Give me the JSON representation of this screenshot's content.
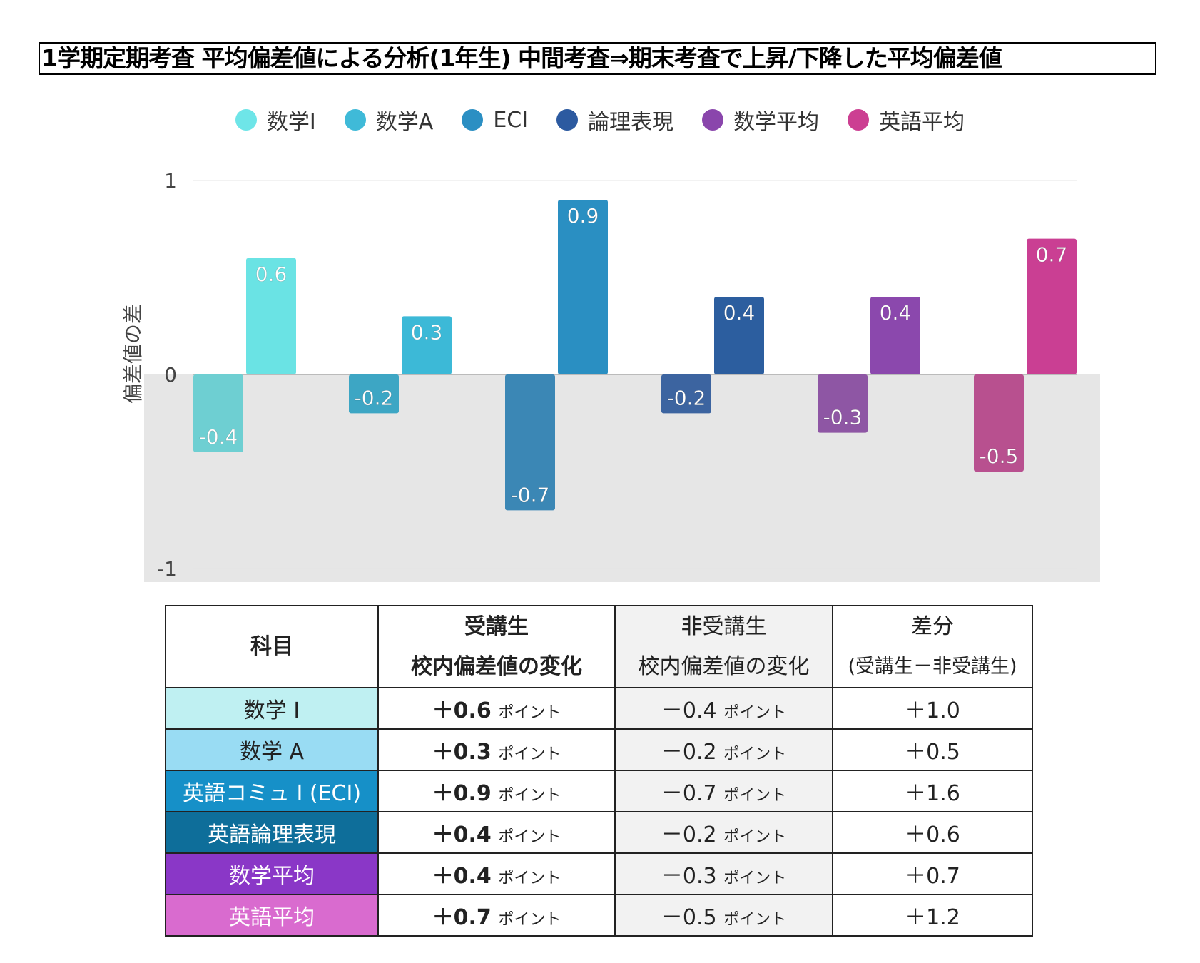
{
  "title": "1学期定期考査  平均偏差値による分析(1年生)   中間考査⇒期末考査で上昇/下降した平均偏差値",
  "chart_data": {
    "type": "bar",
    "title": "",
    "ylabel": "偏差値の差",
    "ylim": [
      -1,
      1
    ],
    "yticks": [
      "1",
      "0",
      "-1"
    ],
    "grid": true,
    "legend_position": "top",
    "categories": [
      "数学I",
      "数学A",
      "ECI",
      "論理表現",
      "数学平均",
      "英語平均"
    ],
    "colors": {
      "positive": [
        "#6ae3e4",
        "#3cb9d7",
        "#2a8fc2",
        "#2c5e9f",
        "#8b48ad",
        "#ca3f93"
      ],
      "negative": [
        "#6ecfd2",
        "#3da6c4",
        "#3b87b5",
        "#3c64a0",
        "#8e56a4",
        "#b8508f"
      ],
      "legend": [
        "#6ee5e8",
        "#3fbad8",
        "#2b8fc3",
        "#2c5aa0",
        "#8a46ac",
        "#cc3f92"
      ]
    },
    "series": [
      {
        "values": [
          -0.4,
          -0.2,
          -0.7,
          -0.2,
          -0.3,
          -0.5
        ]
      },
      {
        "values": [
          0.6,
          0.3,
          0.9,
          0.4,
          0.4,
          0.7
        ]
      }
    ],
    "data_labels": [
      [
        "-0.4",
        "-0.2",
        "-0.7",
        "-0.2",
        "-0.3",
        "-0.5"
      ],
      [
        "0.6",
        "0.3",
        "0.9",
        "0.4",
        "0.4",
        "0.7"
      ]
    ]
  },
  "table": {
    "headers": [
      {
        "l1": "科目",
        "l2": ""
      },
      {
        "l1": "受講生",
        "l2": "校内偏差値の変化"
      },
      {
        "l1": "非受講生",
        "l2": "校内偏差値の変化"
      },
      {
        "l1": "差分",
        "l2": "(受講生－非受講生)"
      }
    ],
    "unit": "ポイント",
    "rows": [
      {
        "subject": "数学 I",
        "taking": "＋0.6",
        "not": "－0.4",
        "diff": "＋1.0",
        "bg": "#bff0f2",
        "fg": "#222"
      },
      {
        "subject": "数学 A",
        "taking": "＋0.3",
        "not": "－0.2",
        "diff": "＋0.5",
        "bg": "#99dcf3",
        "fg": "#222"
      },
      {
        "subject": "英語コミュ I (ECI)",
        "taking": "＋0.9",
        "not": "－0.7",
        "diff": "＋1.6",
        "bg": "#1690c8",
        "fg": "#fff"
      },
      {
        "subject": "英語論理表現",
        "taking": "＋0.4",
        "not": "－0.2",
        "diff": "＋0.6",
        "bg": "#0e6e9a",
        "fg": "#fff"
      },
      {
        "subject": "数学平均",
        "taking": "＋0.4",
        "not": "－0.3",
        "diff": "＋0.7",
        "bg": "#8a37c7",
        "fg": "#fff"
      },
      {
        "subject": "英語平均",
        "taking": "＋0.7",
        "not": "－0.5",
        "diff": "＋1.2",
        "bg": "#d96bcf",
        "fg": "#fff"
      }
    ]
  }
}
